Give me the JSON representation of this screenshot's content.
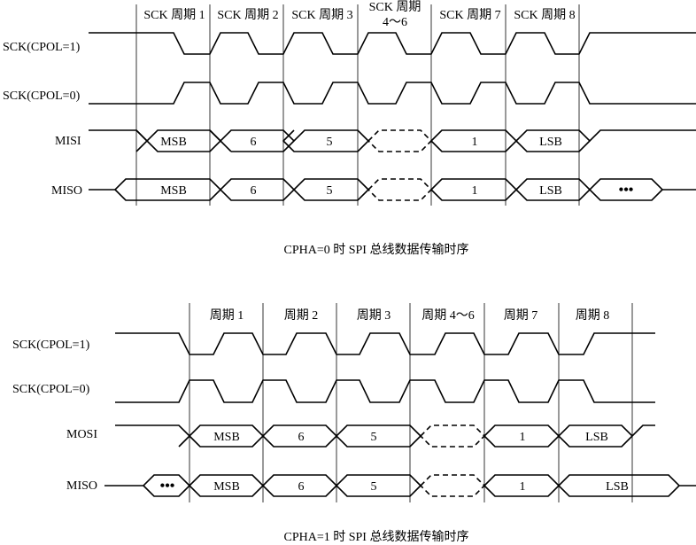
{
  "diagram_a": {
    "periods": [
      "SCK 周期 1",
      "SCK 周期 2",
      "SCK 周期 3",
      "SCK 周期",
      "4～6",
      "SCK 周期 7",
      "SCK 周期 8"
    ],
    "signals": {
      "sck_cpol1": "SCK(CPOL=1)",
      "sck_cpol0": "SCK(CPOL=0)",
      "mosi": "MISI",
      "miso": "MISO"
    },
    "data_labels": [
      "MSB",
      "6",
      "5",
      "1",
      "LSB"
    ],
    "ellipsis": "•••",
    "caption": "CPHA=0 时 SPI 总线数据传输时序"
  },
  "diagram_b": {
    "periods": [
      "周期 1",
      "周期 2",
      "周期 3",
      "周期 4～6",
      "周期 7",
      "周期 8"
    ],
    "signals": {
      "sck_cpol1": "SCK(CPOL=1)",
      "sck_cpol0": "SCK(CPOL=0)",
      "mosi": "MOSI",
      "miso": "MISO"
    },
    "data_labels": [
      "MSB",
      "6",
      "5",
      "1",
      "LSB"
    ],
    "ellipsis": "•••",
    "caption": "CPHA=1 时 SPI 总线数据传输时序"
  }
}
